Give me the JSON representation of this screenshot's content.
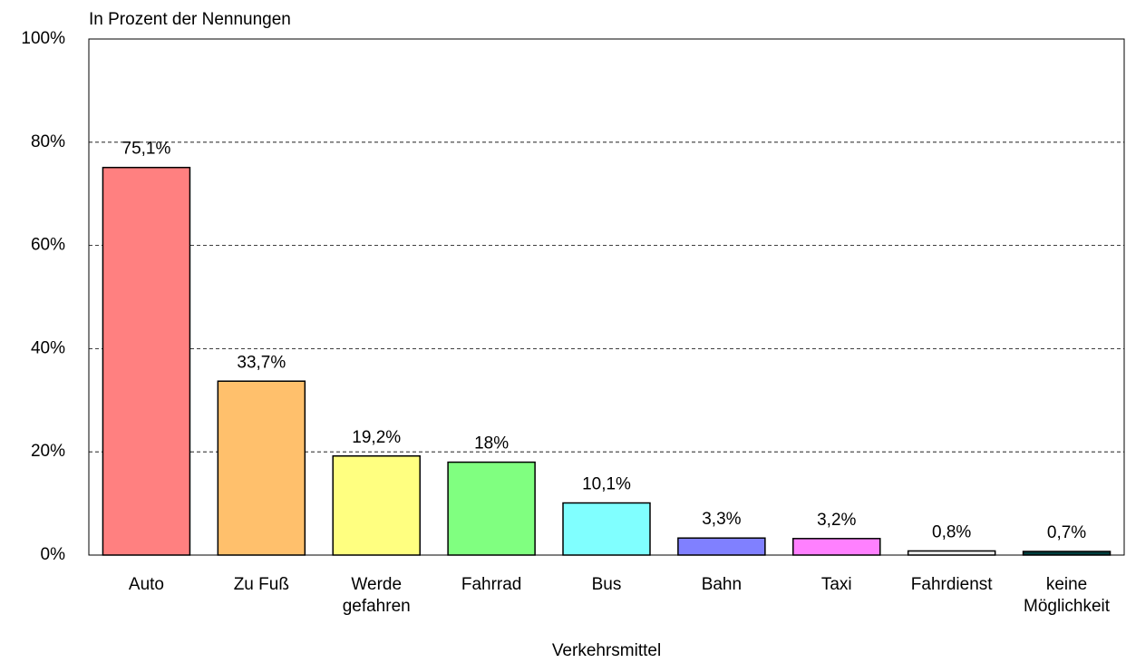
{
  "chart_data": {
    "type": "bar",
    "y_axis_label": "In Prozent der Nennungen",
    "x_axis_label": "Verkehrsmittel",
    "categories": [
      "Auto",
      "Zu Fuß",
      "Werde gefahren",
      "Fahrrad",
      "Bus",
      "Bahn",
      "Taxi",
      "Fahrdienst",
      "keine Möglichkeit"
    ],
    "values": [
      75.1,
      33.7,
      19.2,
      18,
      10.1,
      3.3,
      3.2,
      0.8,
      0.7
    ],
    "value_labels": [
      "75,1%",
      "33,7%",
      "19,2%",
      "18%",
      "10,1%",
      "3,3%",
      "3,2%",
      "0,8%",
      "0,7%"
    ],
    "colors": [
      "#ff8080",
      "#ffc06c",
      "#ffff80",
      "#80ff80",
      "#80ffff",
      "#8080ff",
      "#ff80ff",
      "#eeeeee",
      "#004040"
    ],
    "ylim": [
      0,
      100
    ],
    "yticks": [
      {
        "value": 0,
        "label": "0%"
      },
      {
        "value": 20,
        "label": "20%"
      },
      {
        "value": 40,
        "label": "40%"
      },
      {
        "value": 60,
        "label": "60%"
      },
      {
        "value": 80,
        "label": "80%"
      },
      {
        "value": 100,
        "label": "100%"
      }
    ],
    "grid": true
  }
}
